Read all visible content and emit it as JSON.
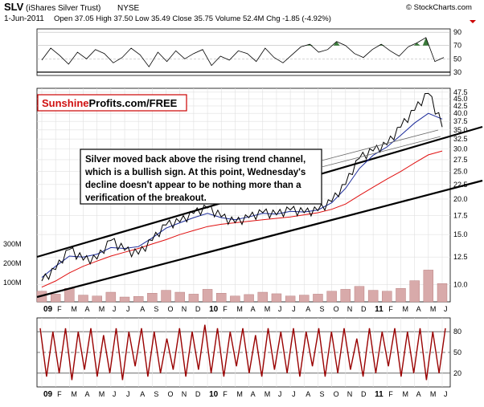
{
  "header": {
    "symbol": "SLV",
    "name": "(iShares Silver Trust)",
    "exchange": "NYSE",
    "date": "1-Jun-2011",
    "ohlc": "Open 37.05  High 37.50  Low 35.49  Close 35.75  Volume 52.4M  Chg -1.85 (-4.92%)",
    "copyright": "© StockCharts.com"
  },
  "logo": {
    "part1": "Sunshine",
    "part2": "Profits.com/FREE"
  },
  "annotation": [
    "Silver moved back above the rising trend channel,",
    "which is a bullish sign. At this point, Wednesday's",
    "decline doesn't appear to be nothing more than a",
    "verification of the breakout."
  ],
  "colors": {
    "price": "#000000",
    "ma_red": "#e01010",
    "ma_blue": "#1a2a9a",
    "volume": "#d8aaaa",
    "volume_edge": "#b07070",
    "rsi_fill": "#3a7a3a",
    "oscillator": "#990000",
    "channel": "#000000"
  },
  "chart_data": [
    {
      "type": "line",
      "panel": "rsi",
      "title": "",
      "y_ticks": [
        "90",
        "70",
        "50",
        "30"
      ],
      "ylim": [
        25,
        95
      ],
      "reference_levels": [
        30,
        50,
        70
      ],
      "x": [
        0,
        2,
        4,
        6,
        8,
        10,
        12,
        14,
        16,
        18,
        20,
        22,
        24,
        26,
        28,
        30,
        32,
        34,
        36,
        38,
        40,
        42,
        44,
        46,
        48,
        50,
        52,
        54,
        56,
        58,
        60,
        62,
        64,
        66,
        68,
        70,
        72,
        74,
        76,
        78,
        80,
        82,
        84,
        86,
        88,
        90
      ],
      "values": [
        48,
        66,
        55,
        42,
        60,
        50,
        64,
        58,
        44,
        52,
        66,
        56,
        38,
        60,
        46,
        62,
        50,
        58,
        64,
        40,
        54,
        48,
        62,
        58,
        46,
        66,
        52,
        44,
        56,
        68,
        72,
        60,
        64,
        76,
        70,
        58,
        52,
        64,
        72,
        62,
        54,
        68,
        74,
        82,
        46,
        52
      ]
    },
    {
      "type": "line",
      "panel": "price",
      "title": "",
      "x_ticks": [
        "09",
        "F",
        "M",
        "A",
        "M",
        "J",
        "J",
        "A",
        "S",
        "O",
        "N",
        "D",
        "10",
        "F",
        "M",
        "A",
        "M",
        "J",
        "J",
        "A",
        "S",
        "O",
        "N",
        "D",
        "11",
        "F",
        "M",
        "A",
        "M",
        "J"
      ],
      "y_ticks": [
        "47.5",
        "45.0",
        "42.5",
        "40.0",
        "37.5",
        "35.0",
        "32.5",
        "30.0",
        "27.5",
        "25.0",
        "22.5",
        "20.0",
        "17.5",
        "15.0",
        "12.5",
        "10.0"
      ],
      "volume_ticks": [
        "300M",
        "200M",
        "100M"
      ],
      "log_scale": true,
      "grid": true,
      "series": [
        {
          "x": [
            0,
            1,
            2,
            3,
            4,
            5,
            6,
            7,
            8,
            9,
            10,
            11,
            12,
            13,
            14,
            15,
            16,
            17,
            18,
            19,
            20,
            21,
            22,
            23,
            24,
            25,
            26,
            27,
            28,
            29
          ],
          "values": [
            10.3,
            11.3,
            13.3,
            12.2,
            12.3,
            14.3,
            13.2,
            12.8,
            14.3,
            16.2,
            16.6,
            17.8,
            18.6,
            17.3,
            16.5,
            17.2,
            17.9,
            17.6,
            18.3,
            17.9,
            18.2,
            19.6,
            22.5,
            27.8,
            29.5,
            31.0,
            35.8,
            41.0,
            47.0,
            35.8
          ]
        },
        {
          "name": "",
          "x": [
            0,
            1,
            2,
            3,
            4,
            5,
            6,
            7,
            8,
            9,
            10,
            11,
            12,
            13,
            14,
            15,
            16,
            17,
            18,
            19,
            20,
            21,
            22,
            23,
            24,
            25,
            26,
            27,
            28,
            29
          ],
          "values": [
            9.8,
            10.3,
            11.0,
            11.6,
            12.1,
            12.6,
            13.0,
            13.4,
            13.9,
            14.4,
            15.0,
            15.5,
            16.0,
            16.3,
            16.5,
            16.7,
            16.9,
            17.1,
            17.3,
            17.6,
            17.9,
            18.4,
            19.2,
            20.6,
            22.0,
            23.5,
            25.0,
            26.8,
            28.6,
            29.5
          ]
        },
        {
          "name": "",
          "x": [
            0,
            1,
            2,
            3,
            4,
            5,
            6,
            7,
            8,
            9,
            10,
            11,
            12,
            13,
            14,
            15,
            16,
            17,
            18,
            19,
            20,
            21,
            22,
            23,
            24,
            25,
            26,
            27,
            28,
            29
          ],
          "values": [
            10.6,
            11.6,
            12.6,
            12.5,
            12.8,
            13.5,
            13.4,
            13.6,
            14.6,
            15.8,
            16.5,
            17.2,
            17.8,
            17.2,
            16.9,
            17.3,
            17.8,
            17.7,
            18.1,
            18.0,
            18.3,
            19.4,
            21.8,
            25.6,
            28.5,
            30.5,
            33.5,
            37.0,
            40.0,
            38.2
          ]
        }
      ],
      "volume": [
        55,
        40,
        70,
        35,
        30,
        50,
        25,
        28,
        45,
        60,
        50,
        40,
        65,
        45,
        30,
        38,
        50,
        42,
        30,
        35,
        40,
        55,
        65,
        80,
        60,
        55,
        70,
        110,
        165,
        95
      ]
    },
    {
      "type": "line",
      "panel": "oscillator",
      "title": "",
      "y_ticks": [
        "80",
        "50",
        "20"
      ],
      "ylim": [
        0,
        100
      ],
      "x_ticks": [
        "09",
        "F",
        "M",
        "A",
        "M",
        "J",
        "J",
        "A",
        "S",
        "O",
        "N",
        "D",
        "10",
        "F",
        "M",
        "A",
        "M",
        "J",
        "J",
        "A",
        "S",
        "O",
        "N",
        "D",
        "11",
        "F",
        "M",
        "A",
        "M",
        "J"
      ],
      "values": [
        85,
        15,
        80,
        20,
        85,
        10,
        80,
        25,
        85,
        15,
        75,
        20,
        85,
        10,
        80,
        30,
        85,
        15,
        80,
        20,
        70,
        25,
        85,
        15,
        80,
        25,
        90,
        20,
        85,
        15,
        80,
        30,
        85,
        20,
        75,
        15,
        85,
        25,
        80,
        20,
        85,
        15,
        80,
        30,
        85,
        15,
        80,
        20,
        85,
        25,
        70,
        15,
        85,
        20,
        80,
        30,
        85,
        15,
        80,
        20,
        85,
        10,
        80,
        20,
        85
      ]
    }
  ]
}
